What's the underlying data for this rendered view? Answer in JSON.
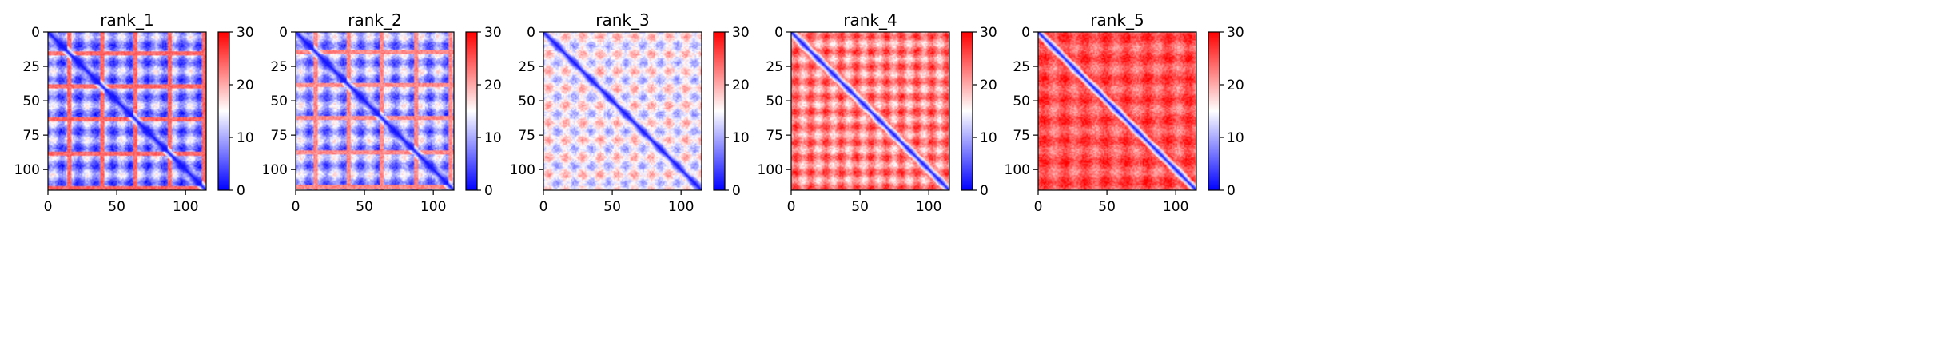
{
  "chart_data": [
    {
      "type": "heatmap",
      "title": "rank_1",
      "xlim": [
        0,
        115
      ],
      "ylim": [
        115,
        0
      ],
      "xticks": [
        0,
        50,
        100
      ],
      "yticks": [
        0,
        25,
        50,
        75,
        100
      ],
      "colorbar": {
        "vmin": 0,
        "vmax": 30,
        "ticks": [
          0,
          10,
          20,
          30
        ],
        "colormap": "bwr"
      },
      "pattern": {
        "base": 9,
        "amp": 7,
        "period": 25,
        "stripe_rows": [
          15,
          39,
          63,
          88,
          113
        ],
        "stripe_value": 24
      }
    },
    {
      "type": "heatmap",
      "title": "rank_2",
      "xlim": [
        0,
        115
      ],
      "ylim": [
        115,
        0
      ],
      "xticks": [
        0,
        50,
        100
      ],
      "yticks": [
        0,
        25,
        50,
        75,
        100
      ],
      "colorbar": {
        "vmin": 0,
        "vmax": 30,
        "ticks": [
          0,
          10,
          20,
          30
        ],
        "colormap": "bwr"
      },
      "pattern": {
        "base": 10,
        "amp": 7,
        "period": 25,
        "stripe_rows": [
          14,
          38,
          62,
          87,
          112
        ],
        "stripe_value": 22
      }
    },
    {
      "type": "heatmap",
      "title": "rank_3",
      "xlim": [
        0,
        115
      ],
      "ylim": [
        115,
        0
      ],
      "xticks": [
        0,
        50,
        100
      ],
      "yticks": [
        0,
        25,
        50,
        75,
        100
      ],
      "colorbar": {
        "vmin": 0,
        "vmax": 30,
        "ticks": [
          0,
          10,
          20,
          30
        ],
        "colormap": "bwr"
      },
      "pattern": {
        "base": 15,
        "amp": 6,
        "period": 25,
        "stripe_rows": [],
        "stripe_value": 0
      }
    },
    {
      "type": "heatmap",
      "title": "rank_4",
      "xlim": [
        0,
        115
      ],
      "ylim": [
        115,
        0
      ],
      "xticks": [
        0,
        50,
        100
      ],
      "yticks": [
        0,
        25,
        50,
        75,
        100
      ],
      "colorbar": {
        "vmin": 0,
        "vmax": 30,
        "ticks": [
          0,
          10,
          20,
          30
        ],
        "colormap": "bwr"
      },
      "pattern": {
        "base": 22,
        "amp": 6,
        "period": 22,
        "stripe_rows": [],
        "stripe_value": 0
      }
    },
    {
      "type": "heatmap",
      "title": "rank_5",
      "xlim": [
        0,
        115
      ],
      "ylim": [
        115,
        0
      ],
      "xticks": [
        0,
        50,
        100
      ],
      "yticks": [
        0,
        25,
        50,
        75,
        100
      ],
      "colorbar": {
        "vmin": 0,
        "vmax": 30,
        "ticks": [
          0,
          10,
          20,
          30
        ],
        "colormap": "bwr"
      },
      "pattern": {
        "base": 25,
        "amp": 4,
        "period": 30,
        "stripe_rows": [],
        "stripe_value": 0
      }
    }
  ]
}
